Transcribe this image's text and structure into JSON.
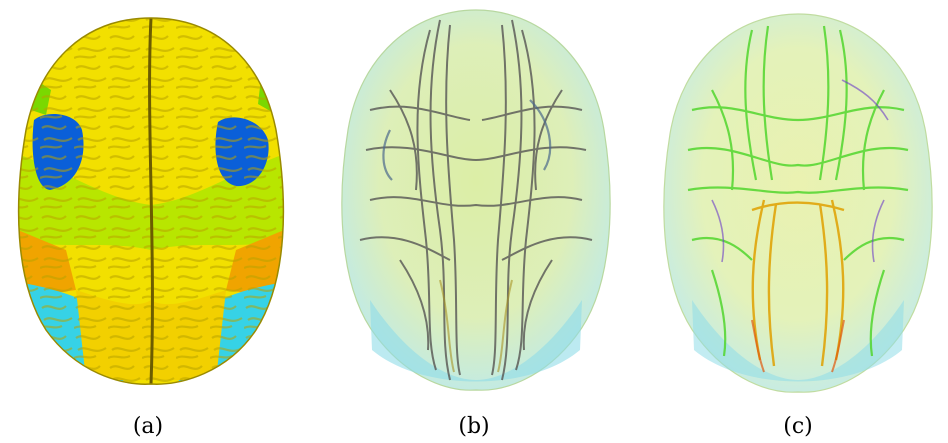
{
  "figure": {
    "panels": [
      {
        "caption": "(a)",
        "icon": "brain-cortex-parcellation"
      },
      {
        "caption": "(b)",
        "icon": "brain-fiber-tracts-gray"
      },
      {
        "caption": "(c)",
        "icon": "brain-fiber-tracts-colored"
      }
    ],
    "colors": {
      "cortex_yellow": "#f2e000",
      "cortex_blue": "#0a5fd8",
      "cortex_cyan": "#36d2e6",
      "cortex_orange": "#f0a400",
      "cortex_green": "#8fe000",
      "glass_shell": "#cfe89a",
      "tract_gray": "#5e5e5a",
      "tract_green": "#52d62e",
      "tract_orange": "#e0a000"
    }
  }
}
